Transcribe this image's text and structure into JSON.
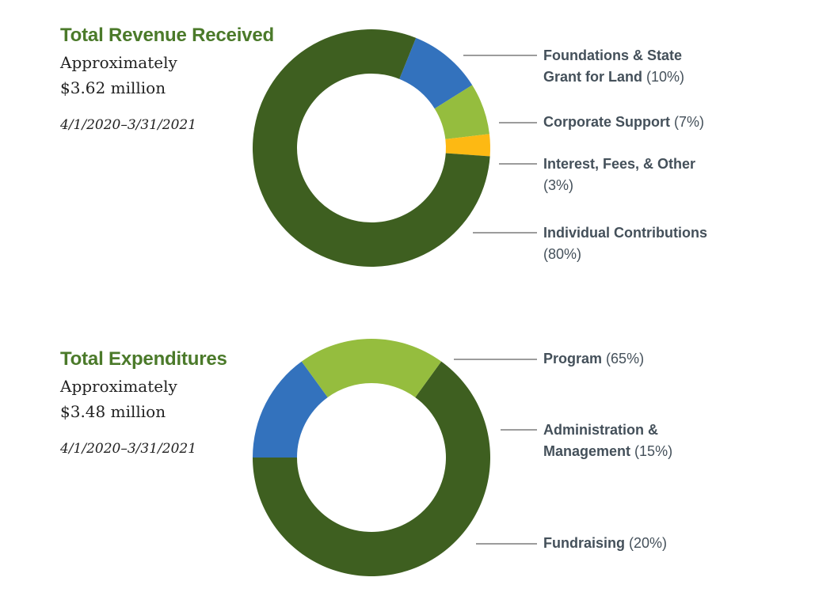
{
  "colors": {
    "title_green": "#4b7a2a",
    "dark_green": "#3e5f20",
    "blue": "#3372bd",
    "light_green": "#95bd3e",
    "yellow": "#fdb913",
    "label_gray": "#44505a"
  },
  "chart_data": [
    {
      "type": "pie",
      "donut": true,
      "title": "Total Revenue Received",
      "subtitle_lines": [
        "Approximately",
        "$3.62 million"
      ],
      "period": "4/1/2020–3/31/2021",
      "slices": [
        {
          "label": "Foundations & State Grant for Land",
          "label_lines": [
            "Foundations & State",
            "Grant for Land"
          ],
          "percent_text": "(10%)",
          "value": 10,
          "color": "#3372bd"
        },
        {
          "label": "Corporate Support",
          "label_lines": [
            "Corporate Support"
          ],
          "percent_text": "(7%)",
          "value": 7,
          "color": "#95bd3e"
        },
        {
          "label": "Interest, Fees, & Other",
          "label_lines": [
            "Interest, Fees, & Other",
            ""
          ],
          "percent_text": "(3%)",
          "value": 3,
          "color": "#fdb913"
        },
        {
          "label": "Individual Contributions",
          "label_lines": [
            "Individual Contributions",
            ""
          ],
          "percent_text": "(80%)",
          "value": 80,
          "color": "#3e5f20"
        }
      ],
      "legend": "right"
    },
    {
      "type": "pie",
      "donut": true,
      "title": "Total Expenditures",
      "subtitle_lines": [
        "Approximately",
        "$3.48 million"
      ],
      "period": "4/1/2020–3/31/2021",
      "slices": [
        {
          "label": "Program",
          "label_lines": [
            "Program"
          ],
          "percent_text": "(65%)",
          "value": 65,
          "color": "#3e5f20"
        },
        {
          "label": "Administration & Management",
          "label_lines": [
            "Administration &",
            "Management"
          ],
          "percent_text": "(15%)",
          "value": 15,
          "color": "#3372bd"
        },
        {
          "label": "Fundraising",
          "label_lines": [
            "Fundraising"
          ],
          "percent_text": "(20%)",
          "value": 20,
          "color": "#95bd3e"
        }
      ],
      "legend": "right"
    }
  ]
}
